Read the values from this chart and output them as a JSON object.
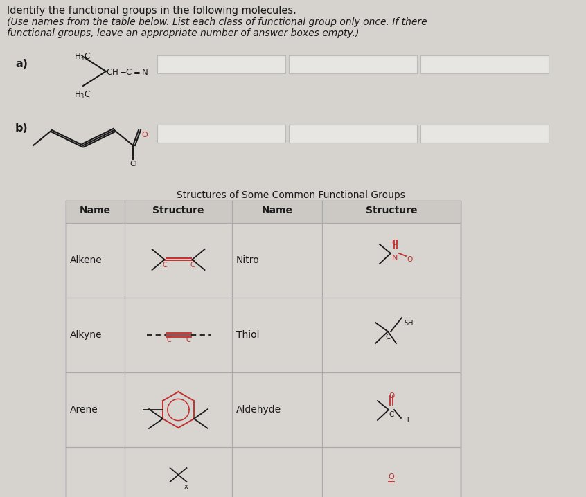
{
  "title_text": "Identify the functional groups in the following molecules.",
  "subtitle_line1": "(Use names from the table below. List each class of functional group only once. If there",
  "subtitle_line2": "functional groups, leave an appropriate number of answer boxes empty.)",
  "bg_color": "#cac8c5",
  "content_bg": "#d6d3cf",
  "table_bg": "#d6d3cf",
  "answer_box_color": "#e8e6e3",
  "answer_box_border": "#aaaaaa",
  "molecule_a_label": "a)",
  "molecule_b_label": "b)",
  "table_title": "Structures of Some Common Functional Groups",
  "col1_header": "Name",
  "col2_header": "Structure",
  "col3_header": "Name",
  "col4_header": "Structure",
  "left_names": [
    "Alkene",
    "Alkyne",
    "Arene"
  ],
  "right_names": [
    "Nitro",
    "Thiol",
    "Aldehyde"
  ],
  "text_color": "#1a1a1a",
  "table_line_color": "#999999",
  "red_color": "#c03030",
  "dark_color": "#333333"
}
